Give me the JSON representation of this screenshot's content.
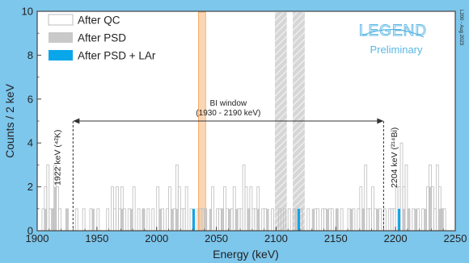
{
  "chart_data": {
    "type": "bar",
    "xlabel": "Energy (keV)",
    "ylabel": "Counts / 2 keV",
    "xlim": [
      1900,
      2250
    ],
    "ylim": [
      0,
      10
    ],
    "x_ticks": [
      1900,
      1950,
      2000,
      2050,
      2100,
      2150,
      2200,
      2250
    ],
    "y_ticks": [
      0,
      2,
      4,
      6,
      8,
      10
    ],
    "bin_width": 2,
    "grid": false,
    "legend_position": "top-left",
    "legend": {
      "qc": "After QC",
      "psd": "After PSD",
      "lar": "After PSD + LAr"
    },
    "colors": {
      "qc_edge": "#bdbdbd",
      "psd_fill": "#c9c9c9",
      "lar_fill": "#0aa6ea",
      "excluded_band": "#d4d4d4",
      "excluded_hatch": "#f2f2f2",
      "orange_band": "#f6a45a",
      "legend_logo": "#5bb6e4",
      "axis": "#444444"
    },
    "series": [
      {
        "name": "After QC",
        "style": "step",
        "values": [
          [
            1904,
            1
          ],
          [
            1906,
            2
          ],
          [
            1908,
            3
          ],
          [
            1910,
            1
          ],
          [
            1912,
            1
          ],
          [
            1914,
            3
          ],
          [
            1916,
            2
          ],
          [
            1918,
            1
          ],
          [
            1924,
            1
          ],
          [
            1932,
            1
          ],
          [
            1938,
            1
          ],
          [
            1944,
            1
          ],
          [
            1950,
            1
          ],
          [
            1958,
            1
          ],
          [
            1962,
            2
          ],
          [
            1964,
            1
          ],
          [
            1966,
            2
          ],
          [
            1968,
            1
          ],
          [
            1970,
            2
          ],
          [
            1972,
            1
          ],
          [
            1976,
            1
          ],
          [
            1980,
            2
          ],
          [
            1984,
            1
          ],
          [
            1988,
            1
          ],
          [
            1992,
            1
          ],
          [
            1996,
            1
          ],
          [
            2000,
            2
          ],
          [
            2004,
            1
          ],
          [
            2008,
            1
          ],
          [
            2010,
            2
          ],
          [
            2014,
            1
          ],
          [
            2016,
            3
          ],
          [
            2018,
            2
          ],
          [
            2020,
            1
          ],
          [
            2022,
            1
          ],
          [
            2024,
            2
          ],
          [
            2028,
            1
          ],
          [
            2034,
            1
          ],
          [
            2036,
            1
          ],
          [
            2038,
            1
          ],
          [
            2040,
            1
          ],
          [
            2046,
            2
          ],
          [
            2050,
            1
          ],
          [
            2052,
            1
          ],
          [
            2054,
            1
          ],
          [
            2056,
            2
          ],
          [
            2058,
            1
          ],
          [
            2062,
            1
          ],
          [
            2064,
            2
          ],
          [
            2068,
            1
          ],
          [
            2070,
            1
          ],
          [
            2072,
            3
          ],
          [
            2074,
            2
          ],
          [
            2076,
            1
          ],
          [
            2078,
            2
          ],
          [
            2080,
            1
          ],
          [
            2082,
            1
          ],
          [
            2084,
            2
          ],
          [
            2088,
            1
          ],
          [
            2090,
            1
          ],
          [
            2096,
            1
          ],
          [
            2102,
            1
          ],
          [
            2106,
            1
          ],
          [
            2110,
            1
          ],
          [
            2114,
            1
          ],
          [
            2120,
            1
          ],
          [
            2126,
            1
          ],
          [
            2132,
            1
          ],
          [
            2134,
            1
          ],
          [
            2138,
            1
          ],
          [
            2140,
            1
          ],
          [
            2144,
            1
          ],
          [
            2146,
            1
          ],
          [
            2150,
            1
          ],
          [
            2154,
            1
          ],
          [
            2160,
            1
          ],
          [
            2164,
            1
          ],
          [
            2168,
            1
          ],
          [
            2170,
            2
          ],
          [
            2172,
            1
          ],
          [
            2174,
            3
          ],
          [
            2176,
            1
          ],
          [
            2178,
            1
          ],
          [
            2180,
            2
          ],
          [
            2182,
            1
          ],
          [
            2186,
            1
          ],
          [
            2190,
            1
          ],
          [
            2194,
            1
          ],
          [
            2196,
            1
          ],
          [
            2198,
            1
          ],
          [
            2200,
            2
          ],
          [
            2202,
            2
          ],
          [
            2204,
            4
          ],
          [
            2206,
            2
          ],
          [
            2208,
            3
          ],
          [
            2210,
            1
          ],
          [
            2214,
            1
          ],
          [
            2218,
            1
          ],
          [
            2222,
            1
          ],
          [
            2226,
            2
          ],
          [
            2228,
            3
          ],
          [
            2230,
            2
          ],
          [
            2232,
            1
          ],
          [
            2234,
            3
          ],
          [
            2236,
            2
          ],
          [
            2238,
            1
          ],
          [
            2240,
            1
          ]
        ]
      },
      {
        "name": "After PSD",
        "style": "filled",
        "values": [
          [
            1906,
            1
          ],
          [
            1912,
            1
          ],
          [
            1914,
            2
          ],
          [
            1924,
            1
          ],
          [
            1946,
            1
          ],
          [
            1970,
            1
          ],
          [
            1978,
            1
          ],
          [
            1988,
            1
          ],
          [
            2002,
            1
          ],
          [
            2012,
            1
          ],
          [
            2016,
            1
          ],
          [
            2040,
            1
          ],
          [
            2044,
            1
          ],
          [
            2054,
            1
          ],
          [
            2060,
            1
          ],
          [
            2066,
            1
          ],
          [
            2076,
            1
          ],
          [
            2084,
            1
          ],
          [
            2092,
            1
          ],
          [
            2116,
            1
          ],
          [
            2130,
            1
          ],
          [
            2142,
            1
          ],
          [
            2150,
            1
          ],
          [
            2162,
            1
          ],
          [
            2172,
            1
          ],
          [
            2184,
            1
          ],
          [
            2206,
            1
          ],
          [
            2210,
            1
          ],
          [
            2216,
            1
          ],
          [
            2224,
            1
          ],
          [
            2228,
            2
          ],
          [
            2236,
            1
          ],
          [
            2238,
            1
          ]
        ]
      },
      {
        "name": "After PSD + LAr",
        "style": "filled",
        "values": [
          [
            2030,
            1
          ],
          [
            2118,
            1
          ],
          [
            2202,
            1
          ]
        ]
      }
    ],
    "excluded_bands": [
      [
        2099,
        2109
      ],
      [
        2114,
        2124
      ]
    ],
    "highlight_band": [
      2035,
      2041
    ],
    "bi_window": {
      "range": [
        1930,
        2190
      ],
      "label": "BI window",
      "range_label": "(1930 - 2190 keV)",
      "arrow_y": 5
    },
    "annotations": [
      {
        "x": 1922,
        "label": "1922 keV (⁴²K)"
      },
      {
        "x": 2204,
        "label": "2204 keV (²¹⁴Bi)"
      }
    ],
    "logo_text": "LEGEND",
    "preliminary_text": "Preliminary",
    "side_note": "L200 - Aug 2023"
  }
}
